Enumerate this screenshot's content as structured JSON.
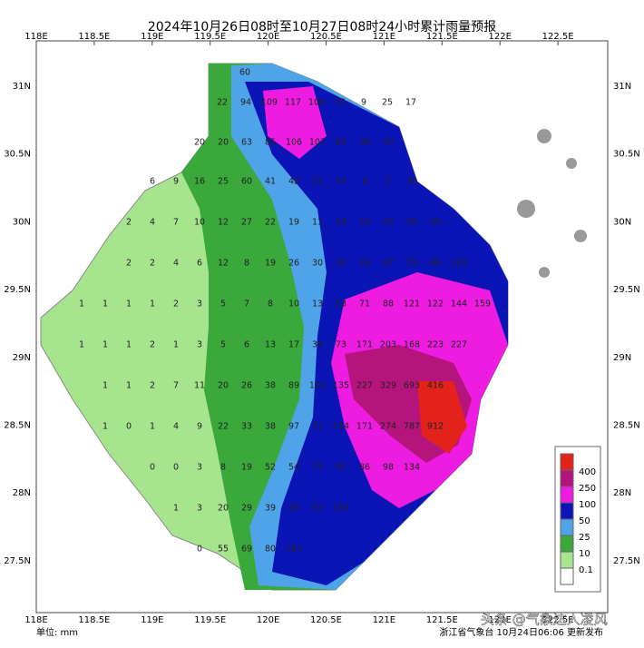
{
  "title": "2024年10月26日08时至10月27日08时24小时累计雨量预报",
  "lon_ticks": [
    "118E",
    "118.5E",
    "119E",
    "119.5E",
    "120E",
    "120.5E",
    "121E",
    "121.5E",
    "122E",
    "122.5E"
  ],
  "lat_ticks": [
    "31N",
    "30.5N",
    "30N",
    "29.5N",
    "29N",
    "28.5N",
    "28N",
    "27.5N"
  ],
  "legend": {
    "levels": [
      "400",
      "250",
      "100",
      "50",
      "25",
      "10",
      "0.1"
    ],
    "colors": [
      "#e3231b",
      "#b4147c",
      "#ee1be0",
      "#0b14b4",
      "#4fa3e8",
      "#3aa83a",
      "#a6e48e",
      "#ffffff"
    ]
  },
  "unit": "单位: mm",
  "footer": "浙江省气象台 10月24日06:06 更新发布",
  "watermark": "头条 @气象达人凌风",
  "stations": [
    [
      "60"
    ],
    [
      "22",
      "94",
      "109",
      "117",
      "106",
      "72",
      "9",
      "25",
      "17"
    ],
    [
      "20",
      "20",
      "63",
      "85",
      "106",
      "107",
      "65",
      "38",
      "10"
    ],
    [
      "6",
      "9",
      "16",
      "25",
      "60",
      "41",
      "42",
      "21",
      "15",
      "9",
      "7",
      "10"
    ],
    [
      "2",
      "4",
      "7",
      "10",
      "12",
      "27",
      "22",
      "19",
      "11",
      "10",
      "10",
      "16",
      "25",
      "45"
    ],
    [
      "2",
      "2",
      "4",
      "6",
      "12",
      "8",
      "19",
      "26",
      "30",
      "32",
      "24",
      "67",
      "75",
      "86",
      "102"
    ],
    [
      "1",
      "1",
      "1",
      "1",
      "2",
      "3",
      "5",
      "7",
      "8",
      "10",
      "13",
      "53",
      "71",
      "88",
      "121",
      "122",
      "144",
      "159"
    ],
    [
      "1",
      "1",
      "1",
      "2",
      "1",
      "3",
      "5",
      "6",
      "13",
      "17",
      "34",
      "73",
      "171",
      "203",
      "168",
      "223",
      "227"
    ],
    [
      "1",
      "1",
      "2",
      "7",
      "11",
      "20",
      "26",
      "38",
      "89",
      "102",
      "135",
      "227",
      "329",
      "693",
      "416"
    ],
    [
      "1",
      "0",
      "1",
      "4",
      "9",
      "22",
      "33",
      "38",
      "97",
      "71",
      "134",
      "171",
      "274",
      "787",
      "912"
    ],
    [
      "0",
      "0",
      "3",
      "8",
      "19",
      "52",
      "54",
      "71",
      "91",
      "86",
      "98",
      "134"
    ],
    [
      "1",
      "3",
      "20",
      "29",
      "39",
      "35",
      "52",
      "103"
    ],
    [
      "0",
      "55",
      "69",
      "80",
      "101"
    ]
  ]
}
